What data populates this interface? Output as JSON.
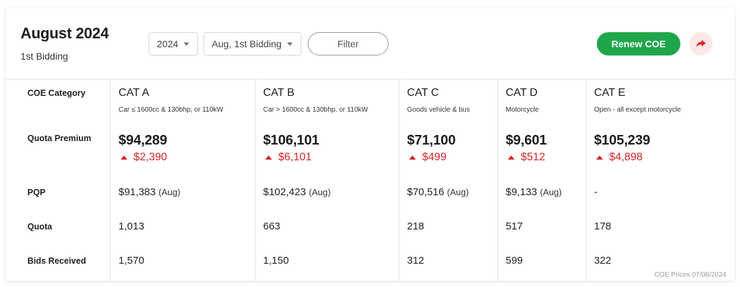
{
  "header": {
    "title": "August 2024",
    "subtitle": "1st Bidding",
    "year_select": "2024",
    "bidding_select": "Aug, 1st Bidding",
    "filter_label": "Filter",
    "renew_label": "Renew COE",
    "share_icon": "share-arrow-icon"
  },
  "row_labels": {
    "category": "COE Category",
    "premium": "Quota Premium",
    "pqp": "PQP",
    "quota": "Quota",
    "bids": "Bids Received"
  },
  "categories": [
    {
      "name": "CAT A",
      "desc": "Car ≤ 1600cc & 130bhp, or 110kW",
      "premium": "$94,289",
      "change": "$2,390",
      "pqp": "$91,383",
      "pqp_period": "(Aug)",
      "quota": "1,013",
      "bids": "1,570"
    },
    {
      "name": "CAT B",
      "desc": "Car > 1600cc & 130bhp, or 110kW",
      "premium": "$106,101",
      "change": "$6,101",
      "pqp": "$102,423",
      "pqp_period": "(Aug)",
      "quota": "663",
      "bids": "1,150"
    },
    {
      "name": "CAT C",
      "desc": "Goods vehicle & bus",
      "premium": "$71,100",
      "change": "$499",
      "pqp": "$70,516",
      "pqp_period": "(Aug)",
      "quota": "218",
      "bids": "312"
    },
    {
      "name": "CAT D",
      "desc": "Motorcycle",
      "premium": "$9,601",
      "change": "$512",
      "pqp": "$9,133",
      "pqp_period": "(Aug)",
      "quota": "517",
      "bids": "599"
    },
    {
      "name": "CAT E",
      "desc": "Open - all except motorcycle",
      "premium": "$105,239",
      "change": "$4,898",
      "pqp": "-",
      "pqp_period": "",
      "quota": "178",
      "bids": "322"
    }
  ],
  "footnote": "COE Prices 07/08/2024",
  "colors": {
    "accent_green": "#1fa64a",
    "increase_red": "#d6262b",
    "share_bg": "#fde7e7"
  }
}
